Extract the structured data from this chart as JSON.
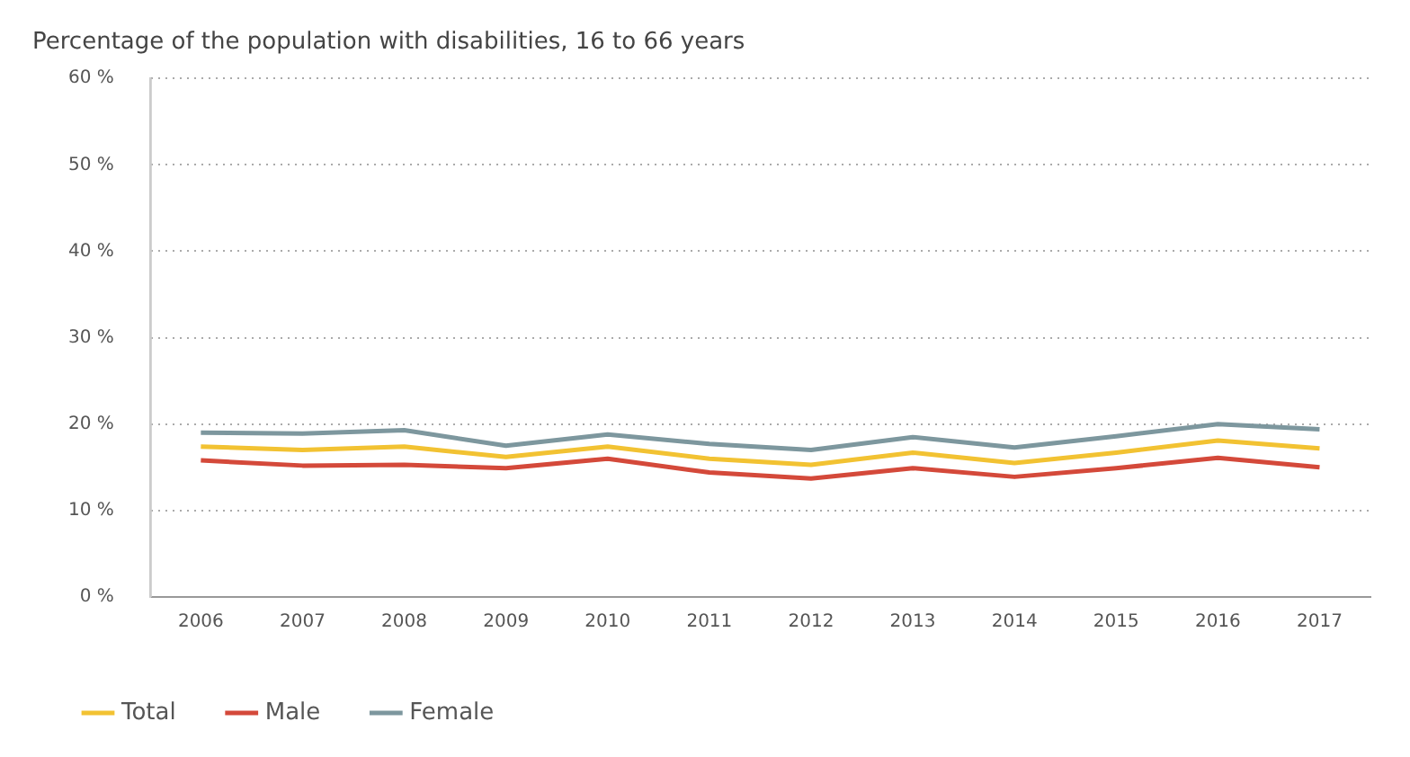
{
  "chart_data": {
    "type": "line",
    "title": "Percentage of the population with disabilities, 16 to 66 years",
    "categories": [
      "2006",
      "2007",
      "2008",
      "2009",
      "2010",
      "2011",
      "2012",
      "2013",
      "2014",
      "2015",
      "2016",
      "2017"
    ],
    "series": [
      {
        "name": "Total",
        "color": "#f2c232",
        "values": [
          17.4,
          17.0,
          17.4,
          16.2,
          17.4,
          16.0,
          15.3,
          16.7,
          15.5,
          16.7,
          18.1,
          17.2
        ]
      },
      {
        "name": "Male",
        "color": "#d4493a",
        "values": [
          15.8,
          15.2,
          15.3,
          14.9,
          16.0,
          14.4,
          13.7,
          14.9,
          13.9,
          14.9,
          16.1,
          15.0
        ]
      },
      {
        "name": "Female",
        "color": "#7d979e",
        "values": [
          19.0,
          18.9,
          19.3,
          17.5,
          18.8,
          17.7,
          17.0,
          18.5,
          17.3,
          18.6,
          20.0,
          19.4
        ]
      }
    ],
    "ylim": [
      0,
      60
    ],
    "yticks": [
      {
        "value": 0,
        "label": "0 %"
      },
      {
        "value": 10,
        "label": "10 %"
      },
      {
        "value": 20,
        "label": "20 %"
      },
      {
        "value": 30,
        "label": "30 %"
      },
      {
        "value": 40,
        "label": "40 %"
      },
      {
        "value": 50,
        "label": "50 %"
      },
      {
        "value": 60,
        "label": "60 %"
      }
    ],
    "grid": "y",
    "legend": "bottom left",
    "marker": "none",
    "line_style": "solid"
  }
}
